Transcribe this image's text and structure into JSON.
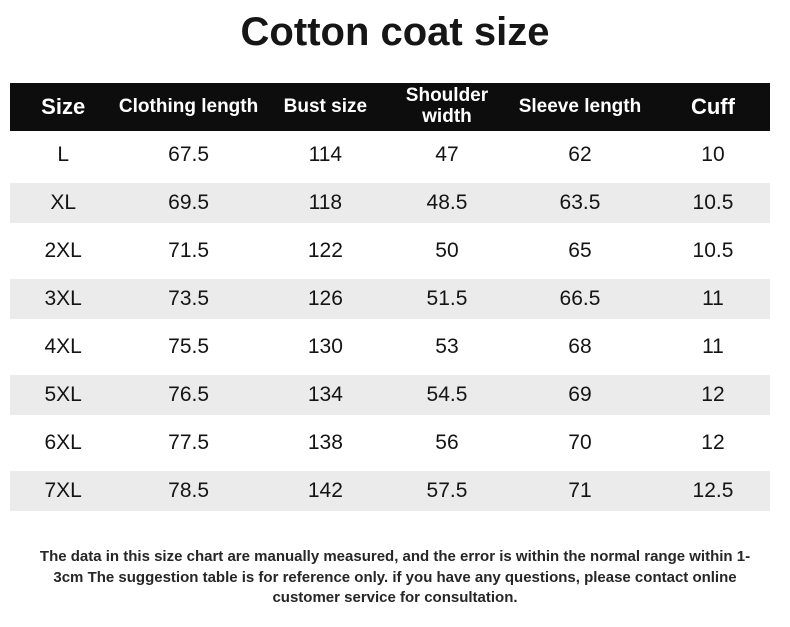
{
  "page": {
    "title": "Cotton coat size"
  },
  "colors": {
    "header_bg": "#0d0d0d",
    "header_text": "#ffffff",
    "stripe": "#ebebeb",
    "body_text": "#141414"
  },
  "table": {
    "columns": [
      "Size",
      "Clothing length",
      "Bust size",
      "Shoulder width",
      "Sleeve length",
      "Cuff"
    ],
    "rows": [
      {
        "cells": [
          "L",
          "67.5",
          "114",
          "47",
          "62",
          "10"
        ]
      },
      {
        "cells": [
          "XL",
          "69.5",
          "118",
          "48.5",
          "63.5",
          "10.5"
        ]
      },
      {
        "cells": [
          "2XL",
          "71.5",
          "122",
          "50",
          "65",
          "10.5"
        ]
      },
      {
        "cells": [
          "3XL",
          "73.5",
          "126",
          "51.5",
          "66.5",
          "11"
        ]
      },
      {
        "cells": [
          "4XL",
          "75.5",
          "130",
          "53",
          "68",
          "11"
        ]
      },
      {
        "cells": [
          "5XL",
          "76.5",
          "134",
          "54.5",
          "69",
          "12"
        ]
      },
      {
        "cells": [
          "6XL",
          "77.5",
          "138",
          "56",
          "70",
          "12"
        ]
      },
      {
        "cells": [
          "7XL",
          "78.5",
          "142",
          "57.5",
          "71",
          "12.5"
        ]
      }
    ]
  },
  "footer": {
    "note": "The data in this size chart are manually measured, and the error is within the normal range within 1-3cm The suggestion table is for reference only. if you have any questions, please contact online customer service for consultation."
  },
  "chart_data": {
    "type": "table",
    "title": "Cotton coat size",
    "columns": [
      "Size",
      "Clothing length",
      "Bust size",
      "Shoulder width",
      "Sleeve length",
      "Cuff"
    ],
    "rows": [
      [
        "L",
        67.5,
        114,
        47,
        62,
        10
      ],
      [
        "XL",
        69.5,
        118,
        48.5,
        63.5,
        10.5
      ],
      [
        "2XL",
        71.5,
        122,
        50,
        65,
        10.5
      ],
      [
        "3XL",
        73.5,
        126,
        51.5,
        66.5,
        11
      ],
      [
        "4XL",
        75.5,
        130,
        53,
        68,
        11
      ],
      [
        "5XL",
        76.5,
        134,
        54.5,
        69,
        12
      ],
      [
        "6XL",
        77.5,
        138,
        56,
        70,
        12
      ],
      [
        "7XL",
        78.5,
        142,
        57.5,
        71,
        12.5
      ]
    ],
    "footnote": "The data in this size chart are manually measured, and the error is within the normal range within 1-3cm The suggestion table is for reference only. if you have any questions, please contact online customer service for consultation.",
    "layout": {
      "striped_rows": "every second row (XL, 3XL, 5XL, 7XL)",
      "header_style": "black band, white bold text"
    }
  }
}
